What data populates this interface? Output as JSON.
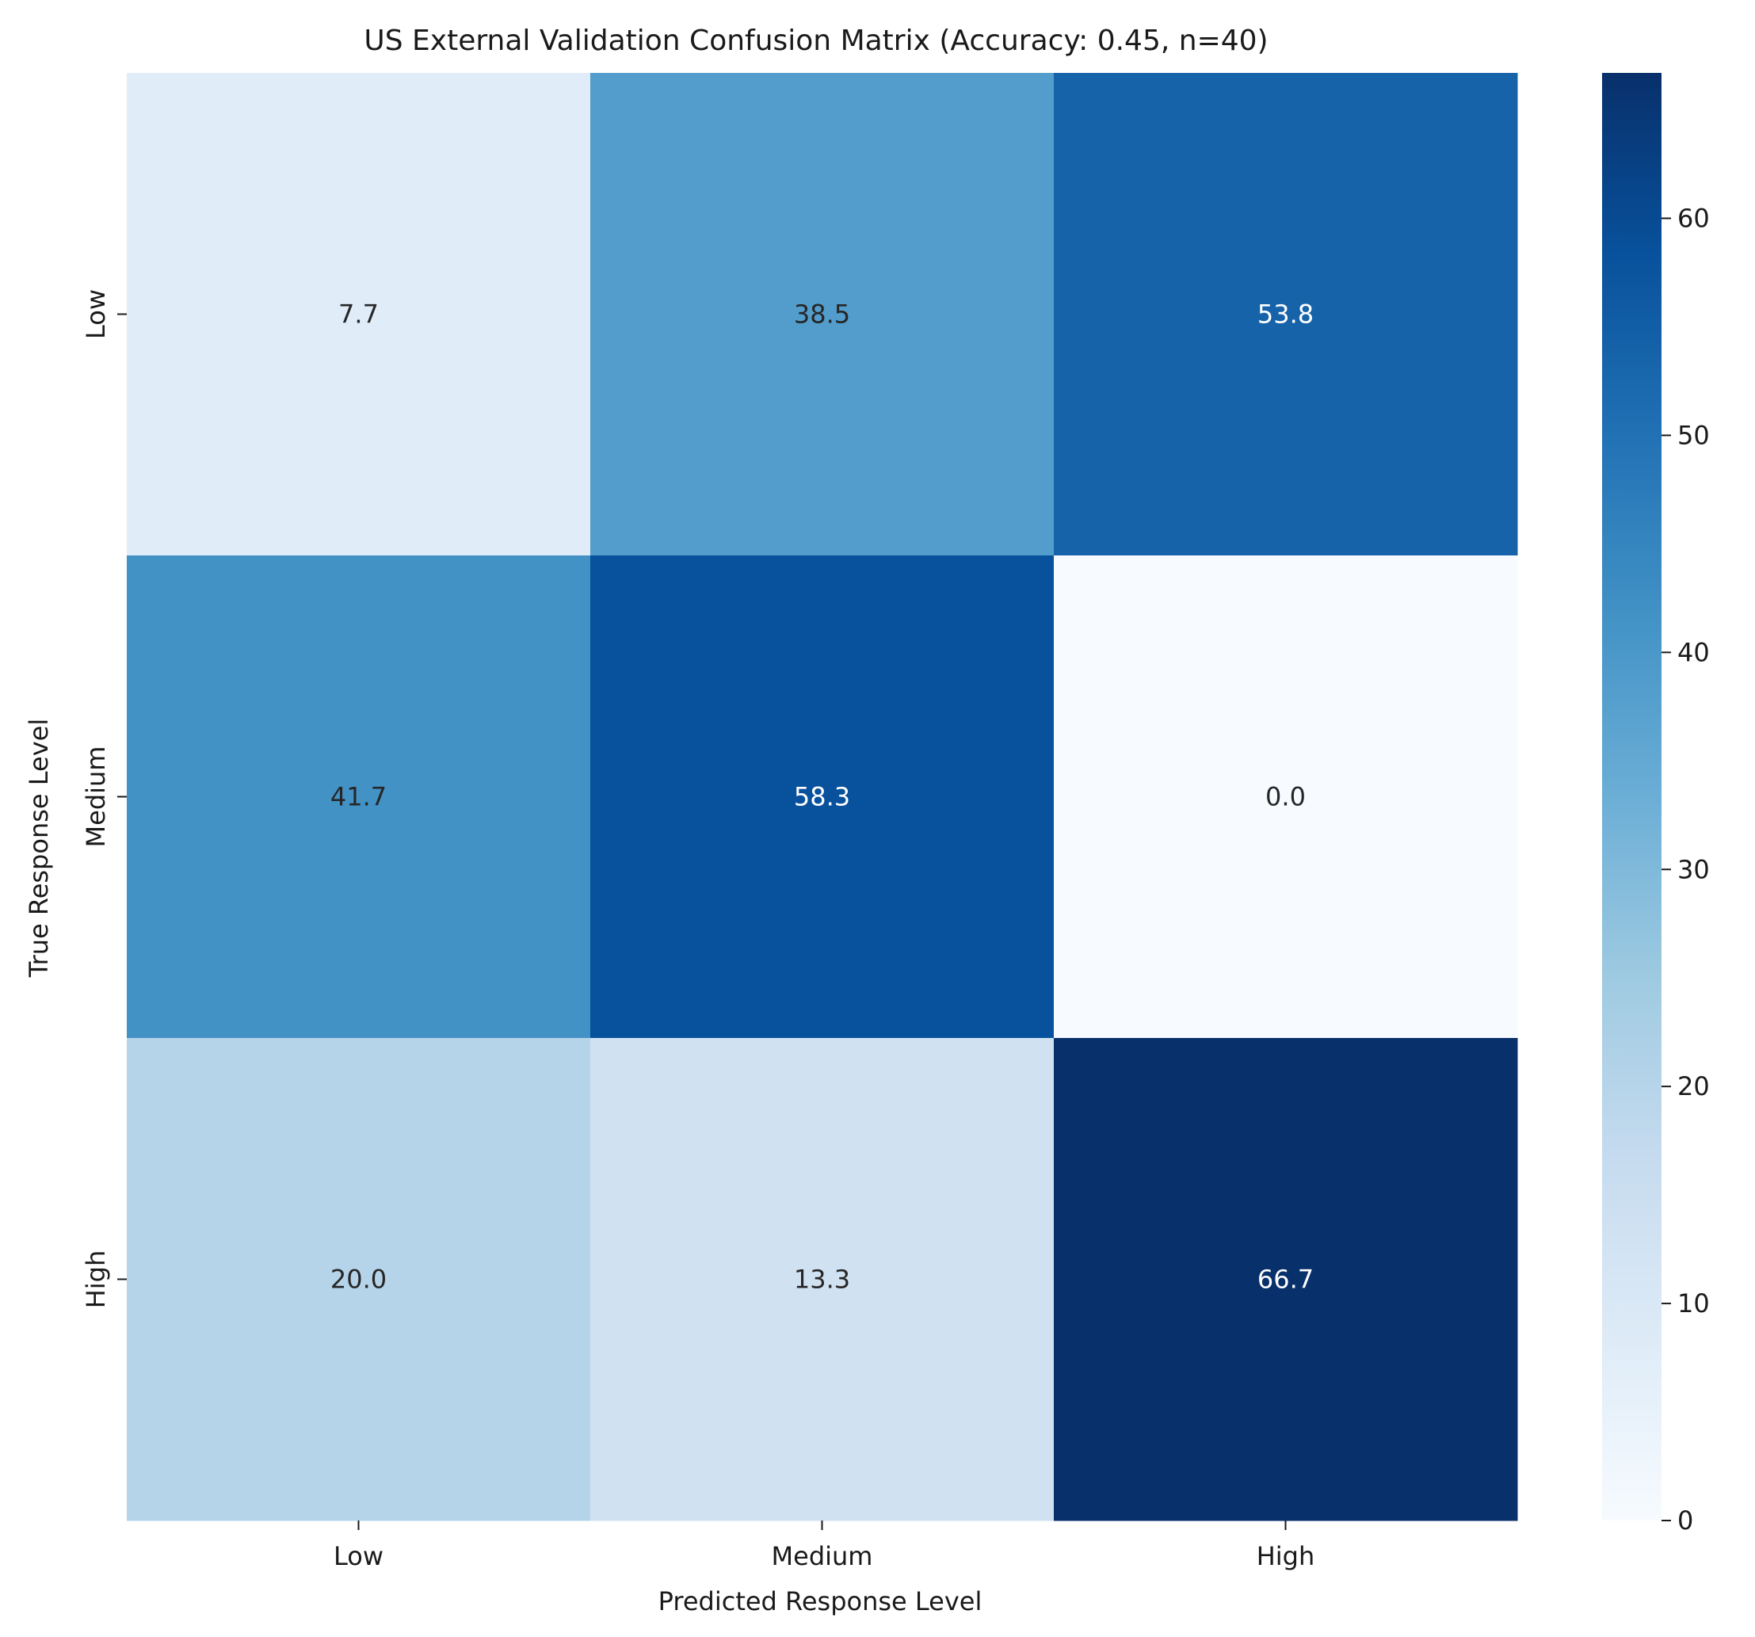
{
  "chart_data": {
    "type": "heatmap",
    "title": "US External Validation Confusion Matrix (Accuracy: 0.45, n=40)",
    "xlabel": "Predicted Response Level",
    "ylabel": "True Response Level",
    "x_categories": [
      "Low",
      "Medium",
      "High"
    ],
    "y_categories": [
      "Low",
      "Medium",
      "High"
    ],
    "values": [
      [
        7.7,
        38.5,
        53.8
      ],
      [
        41.7,
        58.3,
        0.0
      ],
      [
        20.0,
        13.3,
        66.7
      ]
    ],
    "value_format": "0.1f",
    "colormap": "Blues",
    "color_range": [
      0,
      66.7
    ],
    "colorbar_ticks": [
      0,
      10,
      20,
      30,
      40,
      50,
      60
    ],
    "grid": false,
    "colorbar_position": "right"
  }
}
